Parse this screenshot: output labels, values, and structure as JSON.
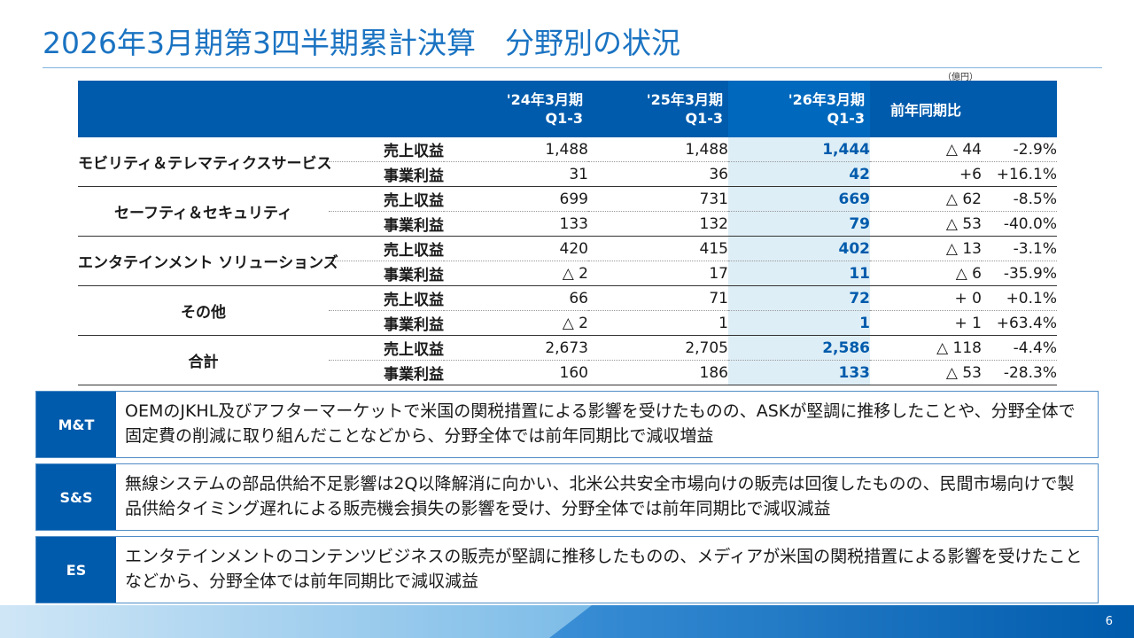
{
  "title": "2026年3月期第3四半期累計決算　分野別の状況",
  "unit": "（億円）",
  "table": {
    "columns": {
      "p1": {
        "line1": "'24年3月期",
        "line2": "Q1-3"
      },
      "p2": {
        "line1": "'25年3月期",
        "line2": "Q1-3"
      },
      "p3": {
        "line1": "'26年3月期",
        "line2": "Q1-3"
      },
      "yoy": "前年同期比"
    },
    "segments": [
      {
        "name": "モビリティ＆テレマティクスサービス",
        "rows": [
          {
            "metric": "売上収益",
            "p1": "1,488",
            "p2": "1,488",
            "p3": "1,444",
            "diff": "△ 44",
            "pct": "-2.9%"
          },
          {
            "metric": "事業利益",
            "p1": "31",
            "p2": "36",
            "p3": "42",
            "diff": "+6",
            "pct": "+16.1%"
          }
        ]
      },
      {
        "name": "セーフティ＆セキュリティ",
        "rows": [
          {
            "metric": "売上収益",
            "p1": "699",
            "p2": "731",
            "p3": "669",
            "diff": "△ 62",
            "pct": "-8.5%"
          },
          {
            "metric": "事業利益",
            "p1": "133",
            "p2": "132",
            "p3": "79",
            "diff": "△ 53",
            "pct": "-40.0%"
          }
        ]
      },
      {
        "name": "エンタテインメント ソリューションズ",
        "rows": [
          {
            "metric": "売上収益",
            "p1": "420",
            "p2": "415",
            "p3": "402",
            "diff": "△ 13",
            "pct": "-3.1%"
          },
          {
            "metric": "事業利益",
            "p1": "△ 2",
            "p2": "17",
            "p3": "11",
            "diff": "△ 6",
            "pct": "-35.9%"
          }
        ]
      },
      {
        "name": "その他",
        "rows": [
          {
            "metric": "売上収益",
            "p1": "66",
            "p2": "71",
            "p3": "72",
            "diff": "+ 0",
            "pct": "+0.1%"
          },
          {
            "metric": "事業利益",
            "p1": "△ 2",
            "p2": "1",
            "p3": "1",
            "diff": "+ 1",
            "pct": "+63.4%"
          }
        ]
      },
      {
        "name": "合計",
        "rows": [
          {
            "metric": "売上収益",
            "p1": "2,673",
            "p2": "2,705",
            "p3": "2,586",
            "diff": "△ 118",
            "pct": "-4.4%"
          },
          {
            "metric": "事業利益",
            "p1": "160",
            "p2": "186",
            "p3": "133",
            "diff": "△ 53",
            "pct": "-28.3%"
          }
        ]
      }
    ]
  },
  "notes": [
    {
      "tag": "M&T",
      "text": "OEMのJKHL及びアフターマーケットで米国の関税措置による影響を受けたものの、ASKが堅調に推移したことや、分野全体で固定費の削減に取り組んだことなどから、分野全体では前年同期比で減収増益"
    },
    {
      "tag": "S&S",
      "text": "無線システムの部品供給不足影響は2Q以降解消に向かい、北米公共安全市場向けの販売は回復したものの、民間市場向けで製品供給タイミング遅れによる販売機会損失の影響を受け、分野全体では前年同期比で減収減益"
    },
    {
      "tag": "ES",
      "text": "エンタテインメントのコンテンツビジネスの販売が堅調に推移したものの、メディアが米国の関税措置による影響を受けたことなどから、分野全体では前年同期比で減収減益"
    }
  ],
  "page_number": "6",
  "colors": {
    "brand": "#005bac",
    "highlight": "#deeef6",
    "title": "#1a73c2"
  }
}
